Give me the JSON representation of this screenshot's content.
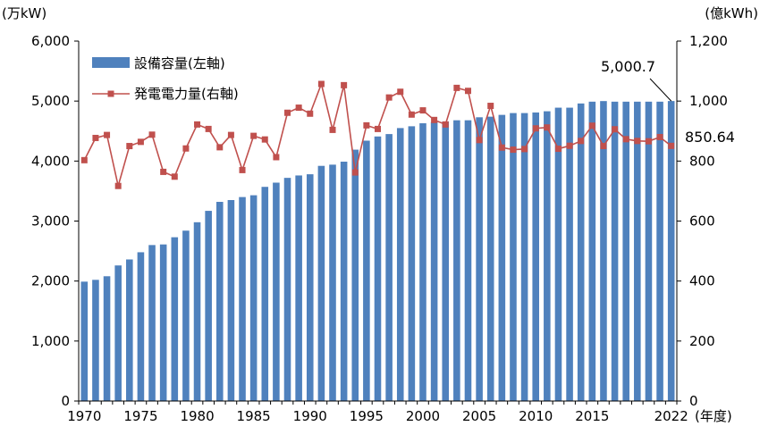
{
  "chart_data": {
    "type": "bar+line",
    "title": "",
    "x": [
      1970,
      1971,
      1972,
      1973,
      1974,
      1975,
      1976,
      1977,
      1978,
      1979,
      1980,
      1981,
      1982,
      1983,
      1984,
      1985,
      1986,
      1987,
      1988,
      1989,
      1990,
      1991,
      1992,
      1993,
      1994,
      1995,
      1996,
      1997,
      1998,
      1999,
      2000,
      2001,
      2002,
      2003,
      2004,
      2005,
      2006,
      2007,
      2008,
      2009,
      2010,
      2011,
      2012,
      2013,
      2014,
      2015,
      2016,
      2017,
      2018,
      2019,
      2020,
      2021,
      2022
    ],
    "x_ticks": [
      "1970",
      "1975",
      "1980",
      "1985",
      "1990",
      "1995",
      "2000",
      "2005",
      "2010",
      "2015",
      "2022"
    ],
    "x_unit": "(年度)",
    "y_left": {
      "unit": "(万kW)",
      "range": [
        0,
        6000
      ],
      "ticks": [
        "0",
        "1,000",
        "2,000",
        "3,000",
        "4,000",
        "5,000",
        "6,000"
      ]
    },
    "y_right": {
      "unit": "(億kWh)",
      "range": [
        0,
        1200
      ],
      "ticks": [
        "0",
        "200",
        "400",
        "600",
        "800",
        "1,000",
        "1,200"
      ]
    },
    "series": [
      {
        "name": "設備容量(左軸)",
        "type": "bar",
        "axis": "left",
        "color": "#4f81bd",
        "values": [
          1990,
          2020,
          2080,
          2260,
          2360,
          2480,
          2600,
          2610,
          2730,
          2840,
          2980,
          3170,
          3320,
          3350,
          3400,
          3430,
          3570,
          3640,
          3720,
          3760,
          3780,
          3920,
          3940,
          3990,
          4190,
          4340,
          4410,
          4450,
          4550,
          4580,
          4630,
          4650,
          4660,
          4680,
          4680,
          4730,
          4740,
          4770,
          4800,
          4800,
          4810,
          4830,
          4890,
          4890,
          4960,
          4990,
          5000,
          4990,
          4990,
          4990,
          4990,
          4990,
          5000.7
        ]
      },
      {
        "name": "発電電力量(右軸)",
        "type": "line",
        "axis": "right",
        "color": "#c0504d",
        "values": [
          803,
          877,
          887,
          717,
          850,
          864,
          888,
          764,
          748,
          842,
          922,
          907,
          846,
          887,
          770,
          884,
          872,
          813,
          961,
          978,
          958,
          1057,
          904,
          1053,
          762,
          919,
          907,
          1012,
          1031,
          955,
          969,
          937,
          922,
          1044,
          1034,
          870,
          984,
          845,
          838,
          840,
          909,
          912,
          841,
          851,
          867,
          918,
          850,
          906,
          873,
          867,
          866,
          880,
          850.64
        ]
      }
    ],
    "annotations": [
      {
        "text": "5,000.7",
        "series": "設備容量(左軸)",
        "x": 2022
      },
      {
        "text": "850.64",
        "series": "発電電力量(右軸)",
        "x": 2022
      }
    ],
    "legend_position": "top-left",
    "grid": false
  }
}
